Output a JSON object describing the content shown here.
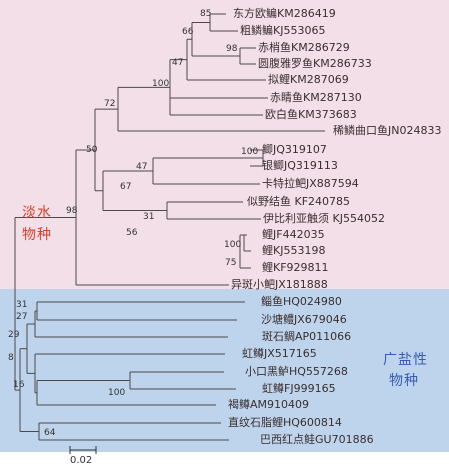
{
  "colors": {
    "freshwater_bg": "#f2dfe8",
    "saltwater_bg": "#bed4ec",
    "freshwater_text": "#d9402b",
    "saltwater_text": "#3a5bb0",
    "line": "#4a4a4a"
  },
  "groups": {
    "freshwater_line1": "淡水",
    "freshwater_line2": "物种",
    "saltwater_line1": "广盐性",
    "saltwater_line2": "物种"
  },
  "taxa": [
    "东方欧鳊KM286419",
    "粗鳞鳊KJ553065",
    "赤梢鱼KM286729",
    "圆腹雅罗鱼KM286733",
    "拟鲤KM287069",
    "赤睛鱼KM287130",
    "欧白鱼KM373683",
    "稀鳞曲口鱼JN024833",
    "鲫JQ319107",
    "银鲫JQ319113",
    "卡特拉鲃JX887594",
    "似野结鱼 KF240785",
    "伊比利亚触须 KJ554052",
    "鲤JF442035",
    "鲤KJ553198",
    "鲤KF929811",
    "异斑小鲃JX181888",
    "鲻鱼HQ024980",
    "沙塘鳢JX679046",
    "斑石鲷AP011066",
    "虹鳟JX517165",
    "小口黑鲈HQ557268",
    "虹鳟FJ999165",
    "褐鳟AM910409",
    "直纹石脂鲤HQ600814",
    "巴西红点鲑GU701886"
  ],
  "bootstrap": [
    "85",
    "66",
    "98",
    "47",
    "100",
    "72",
    "50",
    "98",
    "100",
    "47",
    "67",
    "31",
    "56",
    "100",
    "75",
    "31",
    "27",
    "29",
    "8",
    "16",
    "100",
    "64"
  ],
  "scale": {
    "label": "0.02"
  }
}
